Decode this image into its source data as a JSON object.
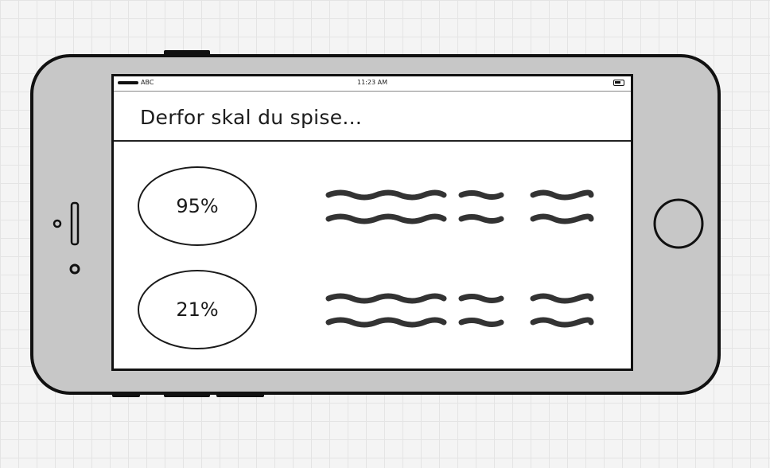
{
  "status_bar": {
    "carrier": "ABC",
    "time": "11:23 AM"
  },
  "header": {
    "title": "Derfor skal du spise..."
  },
  "stats": [
    {
      "percent": "95%"
    },
    {
      "percent": "21%"
    }
  ],
  "icons": {
    "home_button": "home-button-icon",
    "camera": "camera-icon",
    "speaker": "speaker-icon",
    "battery": "battery-icon",
    "signal": "signal-icon"
  },
  "colors": {
    "phone_body": "#c7c7c7",
    "outline": "#111111",
    "screen": "#ffffff"
  }
}
